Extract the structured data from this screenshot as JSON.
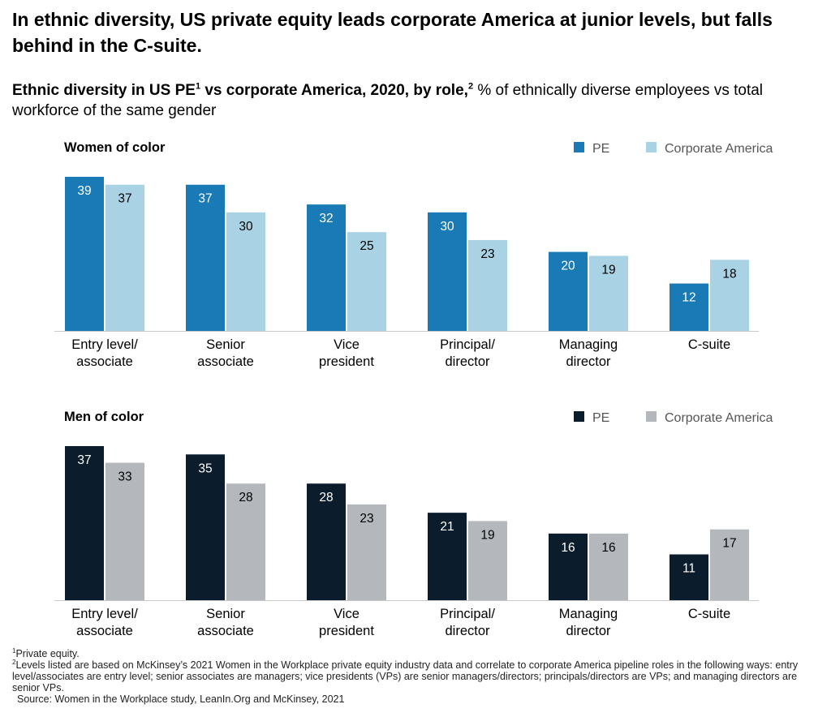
{
  "headline": "In ethnic diversity, US private equity leads corporate America at junior levels, but falls behind in the C-suite.",
  "subtitle": {
    "bold_text": "Ethnic diversity in US PE",
    "bold_sup": "1",
    "bold_text2": " vs corporate America, 2020, by role,",
    "bold_sup2": "2",
    "rest": " % of ethnically diverse employees vs total workforce of the same gender"
  },
  "colors": {
    "women_pe": "#1a7ab5",
    "women_corp": "#a9d3e5",
    "men_pe": "#0b1c2c",
    "men_corp": "#b4b8bd",
    "baseline": "#c8c8c8"
  },
  "chart_data": [
    {
      "type": "bar",
      "title": "Women of color",
      "categories": [
        [
          "Entry level/",
          "associate"
        ],
        [
          "Senior",
          "associate"
        ],
        [
          "Vice",
          "president"
        ],
        [
          "Principal/",
          "director"
        ],
        [
          "Managing",
          "director"
        ],
        [
          "C-suite"
        ]
      ],
      "series": [
        {
          "name": "PE",
          "values": [
            39,
            37,
            32,
            30,
            20,
            12
          ]
        },
        {
          "name": "Corporate America",
          "values": [
            37,
            30,
            25,
            23,
            19,
            18
          ]
        }
      ],
      "ylim": [
        0,
        39
      ],
      "legend": "top-right",
      "grid": false
    },
    {
      "type": "bar",
      "title": "Men of color",
      "categories": [
        [
          "Entry level/",
          "associate"
        ],
        [
          "Senior",
          "associate"
        ],
        [
          "Vice",
          "president"
        ],
        [
          "Principal/",
          "director"
        ],
        [
          "Managing",
          "director"
        ],
        [
          "C-suite"
        ]
      ],
      "series": [
        {
          "name": "PE",
          "values": [
            37,
            35,
            28,
            21,
            16,
            11
          ]
        },
        {
          "name": "Corporate America",
          "values": [
            33,
            28,
            23,
            19,
            16,
            17
          ]
        }
      ],
      "ylim": [
        0,
        37
      ],
      "legend": "top-right",
      "grid": false
    }
  ],
  "footnotes": {
    "note1_sup": "1",
    "note1": "Private equity.",
    "note2_sup": "2",
    "note2": "Levels listed are based on McKinsey’s 2021 Women in the Workplace private equity industry data and correlate to corporate America pipeline roles in the following ways: entry level/associates are entry level; senior associates are managers; vice presidents (VPs) are senior managers/directors; principals/directors are VPs; and managing directors are senior VPs.",
    "source": "Source: Women in the Workplace study, LeanIn.Org and McKinsey, 2021"
  }
}
